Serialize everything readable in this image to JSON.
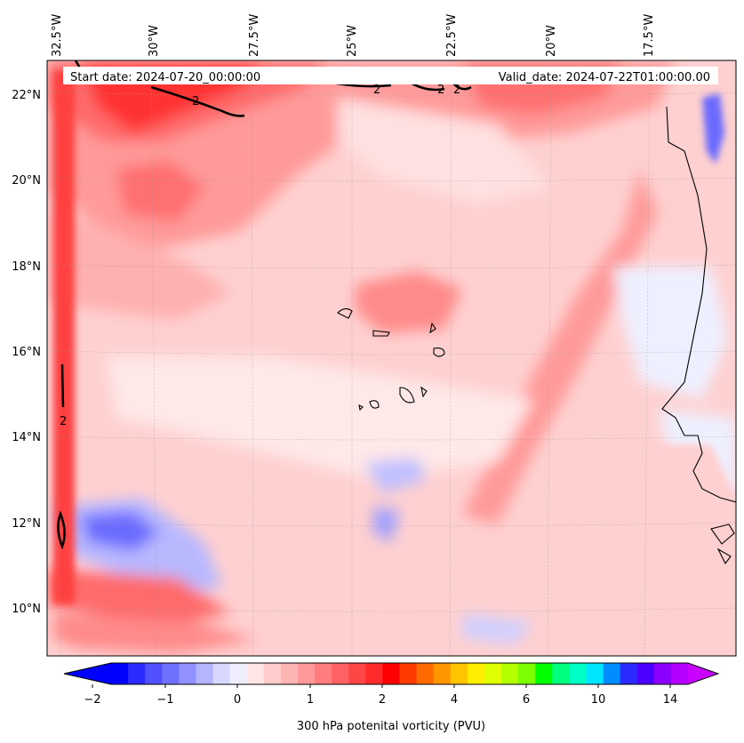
{
  "header": {
    "start_date": "Start date: 2024-07-20_00:00:00",
    "valid_date": "Valid_date: 2024-07-22T01:00:00.00"
  },
  "map": {
    "lon_labels": [
      "32.5°W",
      "30°W",
      "27.5°W",
      "25°W",
      "22.5°W",
      "20°W",
      "17.5°W"
    ],
    "lat_labels": [
      "22°N",
      "20°N",
      "18°N",
      "16°N",
      "14°N",
      "12°N",
      "10°N"
    ],
    "contour_labels": [
      "2",
      "2",
      "2",
      "2",
      "2"
    ]
  },
  "colorbar": {
    "label": "300 hPa potenital vorticity (PVU)",
    "tick_labels": [
      "−2",
      "−1",
      "0",
      "1",
      "2",
      "4",
      "6",
      "10",
      "14"
    ],
    "colors": [
      "#0000ff",
      "#2b2bff",
      "#5050ff",
      "#7070ff",
      "#9090ff",
      "#b4b4ff",
      "#d8d8ff",
      "#eeeeff",
      "#ffe6e6",
      "#ffcccc",
      "#ffb4b4",
      "#ff9999",
      "#ff7d7d",
      "#ff6262",
      "#ff4646",
      "#ff2a2a",
      "#ff0000",
      "#ff3a00",
      "#ff6a00",
      "#ff9600",
      "#ffc400",
      "#ffee00",
      "#e0ff00",
      "#b4ff00",
      "#7cff00",
      "#00ff00",
      "#00ff7c",
      "#00ffc4",
      "#00e6ff",
      "#008cff",
      "#2a2aff",
      "#4c00ff",
      "#8c00ff",
      "#b400ff"
    ],
    "under_color": "#0000ff",
    "over_color": "#c800ff"
  }
}
